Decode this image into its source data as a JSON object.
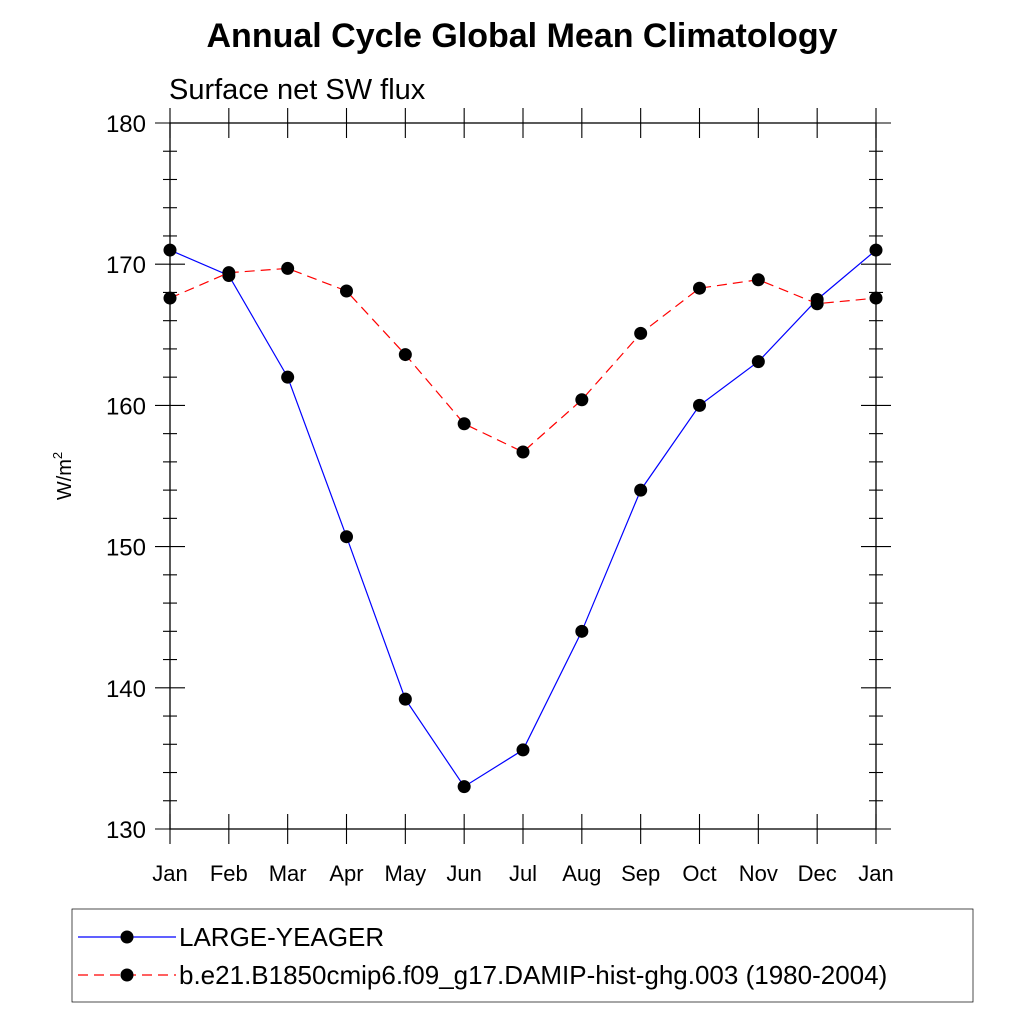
{
  "chart_data": {
    "type": "line",
    "title": "Annual Cycle Global Mean Climatology",
    "subtitle": "Surface net SW flux",
    "ylabel_base": "W/m",
    "ylabel_sup": "2",
    "ylim": [
      130,
      180
    ],
    "yticks": [
      130,
      140,
      150,
      160,
      170,
      180
    ],
    "categories": [
      "Jan",
      "Feb",
      "Mar",
      "Apr",
      "May",
      "Jun",
      "Jul",
      "Aug",
      "Sep",
      "Oct",
      "Nov",
      "Dec",
      "Jan"
    ],
    "grid": false,
    "legend_position": "bottom",
    "series": [
      {
        "name": "LARGE-YEAGER",
        "color": "#0000ff",
        "dash": "solid",
        "marker": "filled-circle",
        "values": [
          171.0,
          169.2,
          162.0,
          150.7,
          139.2,
          133.0,
          135.6,
          144.0,
          154.0,
          160.0,
          163.1,
          167.5,
          171.0
        ]
      },
      {
        "name": "b.e21.B1850cmip6.f09_g17.DAMIP-hist-ghg.003 (1980-2004)",
        "color": "#ff0000",
        "dash": "dashed",
        "marker": "filled-circle",
        "values": [
          167.6,
          169.4,
          169.7,
          168.1,
          163.6,
          158.7,
          156.7,
          160.4,
          165.1,
          168.3,
          168.9,
          167.2,
          167.6
        ]
      }
    ]
  }
}
